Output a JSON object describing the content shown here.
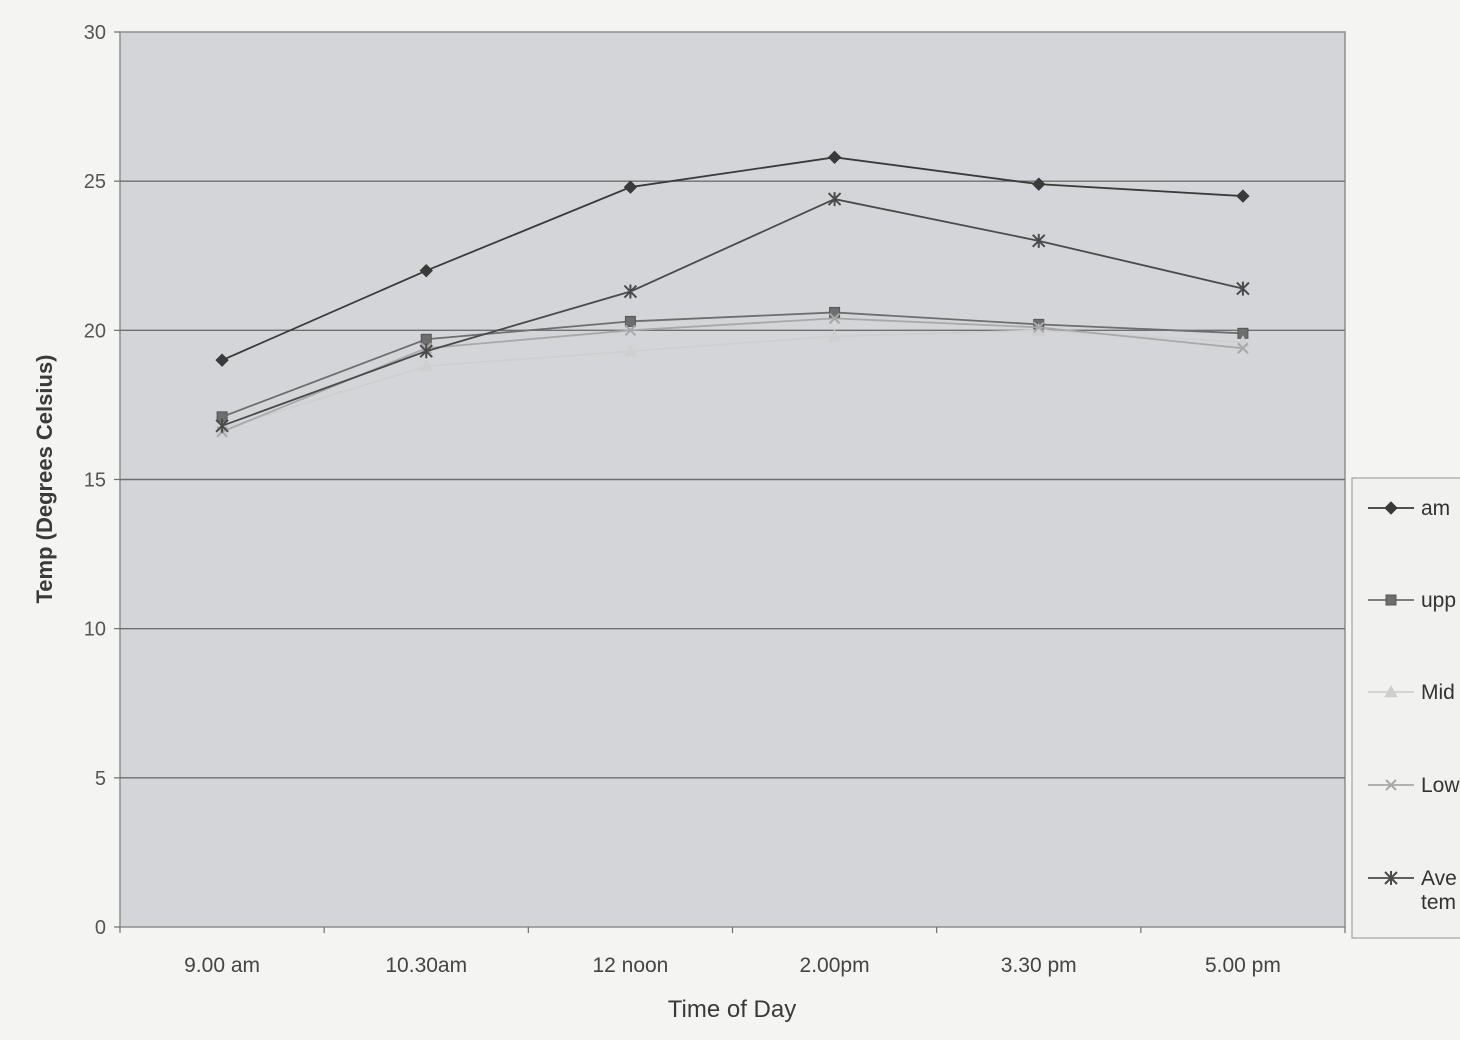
{
  "chart_data": {
    "type": "line",
    "xlabel": "Time of Day",
    "ylabel": "Temp (Degrees Celsius)",
    "categories": [
      "9.00 am",
      "10.30am",
      "12 noon",
      "2.00pm",
      "3.30 pm",
      "5.00 pm"
    ],
    "ylim": [
      0,
      30
    ],
    "yticks": [
      0,
      5,
      10,
      15,
      20,
      25,
      30
    ],
    "grid": true,
    "legend_position": "right",
    "series": [
      {
        "name": "am",
        "marker": "diamond",
        "color": "#3a3a3a",
        "values": [
          19.0,
          22.0,
          24.8,
          25.8,
          24.9,
          24.5
        ]
      },
      {
        "name": "upp",
        "marker": "square",
        "color": "#6e6e6e",
        "values": [
          17.1,
          19.7,
          20.3,
          20.6,
          20.2,
          19.9
        ]
      },
      {
        "name": "Mid",
        "marker": "triangle",
        "color": "#cfcfcf",
        "values": [
          16.7,
          18.8,
          19.3,
          19.8,
          20.0,
          19.6
        ]
      },
      {
        "name": "Low",
        "marker": "x",
        "color": "#a8a8a8",
        "values": [
          16.6,
          19.4,
          20.0,
          20.4,
          20.1,
          19.4
        ]
      },
      {
        "name": "Ave tem",
        "marker": "star",
        "color": "#4a4a4a",
        "values": [
          16.8,
          19.3,
          21.3,
          24.4,
          23.0,
          21.4
        ]
      }
    ]
  }
}
